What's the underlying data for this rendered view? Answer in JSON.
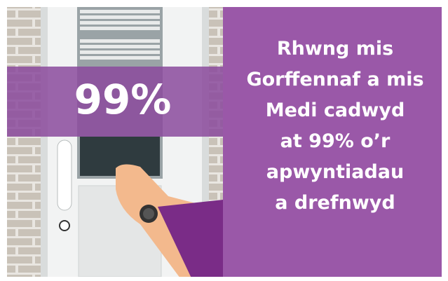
{
  "stat": "99%",
  "message_lines": [
    "Rhwng mis",
    "Gorffennaf a mis",
    "Medi cadwyd",
    "at 99% o’r",
    "apwyntiadau",
    "a drefnwyd"
  ]
}
